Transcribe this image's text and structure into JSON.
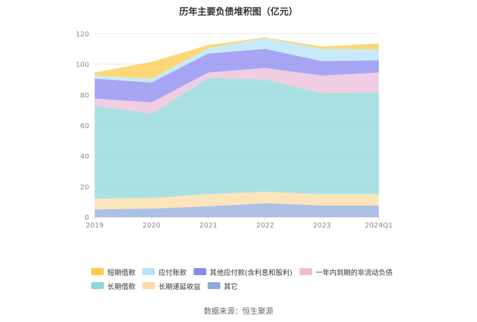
{
  "title": "历年主要负债堆积图（亿元）",
  "source": "数据来源：恒生聚源",
  "chart_data": {
    "type": "area",
    "stacked": true,
    "x": [
      "2019",
      "2020",
      "2021",
      "2022",
      "2023",
      "2024Q1"
    ],
    "ylim": [
      0,
      120
    ],
    "yticks": [
      0,
      20,
      40,
      60,
      80,
      100,
      120
    ],
    "grid": true,
    "legend_position": "bottom",
    "series": [
      {
        "name": "其它",
        "color": "#8fabdc",
        "values": [
          5,
          5.5,
          7,
          9,
          7.5,
          7.5
        ]
      },
      {
        "name": "长期递延收益",
        "color": "#fbdba4",
        "values": [
          7,
          7,
          8,
          7.5,
          7.5,
          7.5
        ]
      },
      {
        "name": "长期借款",
        "color": "#8cd7d8",
        "values": [
          61,
          55,
          76,
          73.5,
          66,
          66.5
        ]
      },
      {
        "name": "一年内到期的非流动负债",
        "color": "#ebbcd8",
        "values": [
          4.5,
          7.5,
          3.5,
          7.5,
          11.5,
          13
        ]
      },
      {
        "name": "其他应付款(含利息和股利)",
        "color": "#8a87f0",
        "values": [
          13,
          13,
          12.5,
          12.5,
          9.5,
          8
        ]
      },
      {
        "name": "应付账款",
        "color": "#b4e3f8",
        "values": [
          2,
          2.5,
          3.5,
          7,
          8,
          7
        ]
      },
      {
        "name": "短期借款",
        "color": "#fbca4a",
        "values": [
          2,
          11,
          2,
          0.5,
          1.5,
          4
        ]
      }
    ]
  },
  "legend_rows": [
    [
      {
        "label": "短期借款",
        "color": "#fbca4a"
      },
      {
        "label": "应付账款",
        "color": "#b4e3f8"
      },
      {
        "label": "其他应付款(含利息和股利)",
        "color": "#8a87f0"
      },
      {
        "label": "一年内到期的非流动负债",
        "color": "#ebbcd8"
      }
    ],
    [
      {
        "label": "长期借款",
        "color": "#8cd7d8"
      },
      {
        "label": "长期递延收益",
        "color": "#fbdba4"
      },
      {
        "label": "其它",
        "color": "#8fabdc"
      }
    ]
  ]
}
